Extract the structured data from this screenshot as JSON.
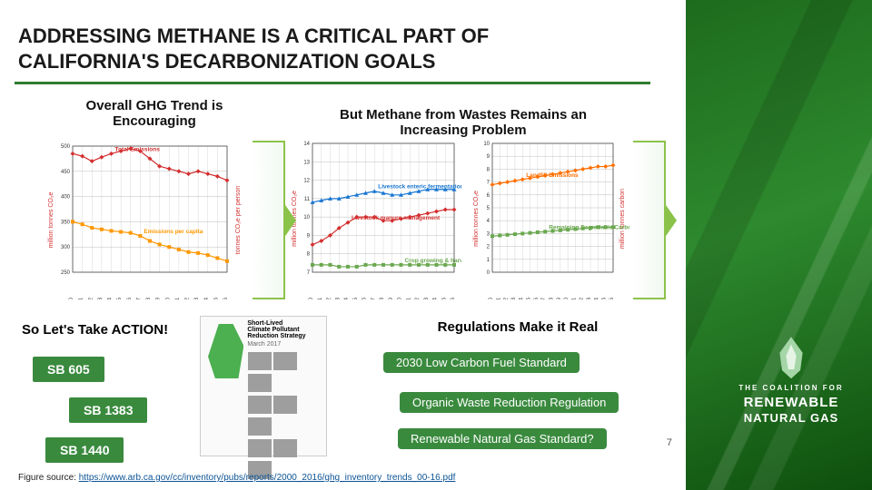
{
  "title_line1": "ADDRESSING METHANE IS A CRITICAL PART OF",
  "title_line2": "CALIFORNIA'S DECARBONIZATION GOALS",
  "title_underline_color": "#2e7d32",
  "subheaders": {
    "left": "Overall GHG Trend is Encouraging",
    "right": "But Methane from Wastes Remains an Increasing Problem"
  },
  "chart_left": {
    "type": "line",
    "series": [
      {
        "name": "Total Emissions",
        "color": "#d32f2f",
        "marker": "diamond",
        "values": [
          485,
          480,
          470,
          478,
          485,
          490,
          495,
          490,
          475,
          460,
          455,
          450,
          445,
          450,
          445,
          440,
          432
        ]
      },
      {
        "name": "Emissions per capita",
        "color": "#ff9800",
        "marker": "square",
        "values": [
          350,
          345,
          338,
          335,
          332,
          330,
          328,
          322,
          312,
          305,
          300,
          295,
          290,
          288,
          284,
          278,
          272
        ]
      }
    ],
    "x_labels": [
      "2000",
      "2001",
      "2002",
      "2003",
      "2004",
      "2005",
      "2006",
      "2007",
      "2008",
      "2009",
      "2010",
      "2011",
      "2012",
      "2013",
      "2014",
      "2015",
      "2016"
    ],
    "ylim": [
      250,
      500
    ],
    "ytick_step": 50,
    "ylabel_left": "million tonnes CO₂e",
    "ylabel_right": "tonnes CO₂e per person",
    "grid_color": "#bdbdbd",
    "background": "#ffffff"
  },
  "chart_mid": {
    "type": "line",
    "series": [
      {
        "name": "Livestock manure management",
        "color": "#d32f2f",
        "marker": "diamond",
        "values": [
          8.5,
          8.7,
          9.0,
          9.4,
          9.7,
          10.0,
          10.0,
          10.0,
          9.8,
          9.8,
          9.9,
          10.0,
          10.1,
          10.2,
          10.3,
          10.4,
          10.4
        ]
      },
      {
        "name": "Livestock enteric fermentation",
        "color": "#1976d2",
        "marker": "triangle",
        "values": [
          10.8,
          10.9,
          11.0,
          11.0,
          11.1,
          11.2,
          11.3,
          11.4,
          11.3,
          11.2,
          11.2,
          11.3,
          11.4,
          11.5,
          11.5,
          11.5,
          11.5
        ]
      },
      {
        "name": "Crop growing & harvesting",
        "color": "#6aa84f",
        "marker": "square",
        "values": [
          7.4,
          7.4,
          7.4,
          7.3,
          7.3,
          7.3,
          7.4,
          7.4,
          7.4,
          7.4,
          7.4,
          7.4,
          7.4,
          7.4,
          7.4,
          7.4,
          7.4
        ]
      }
    ],
    "x_labels": [
      "2000",
      "2001",
      "2002",
      "2003",
      "2004",
      "2005",
      "2006",
      "2007",
      "2008",
      "2009",
      "2010",
      "2011",
      "2012",
      "2013",
      "2014",
      "2015",
      "2016"
    ],
    "ylim": [
      7,
      14
    ],
    "ytick_step": 1,
    "ylabel_left": "million tonnes CO₂e",
    "grid_color": "#bdbdbd"
  },
  "chart_right": {
    "type": "line",
    "series": [
      {
        "name": "Landfill Emissions",
        "color": "#ff6f00",
        "marker": "diamond",
        "values": [
          6.8,
          6.9,
          7.0,
          7.1,
          7.2,
          7.3,
          7.4,
          7.5,
          7.6,
          7.7,
          7.8,
          7.9,
          8.0,
          8.1,
          8.2,
          8.2,
          8.3
        ]
      },
      {
        "name": "Remaining Degradable Carbon",
        "color": "#6aa84f",
        "marker": "square",
        "values": [
          2.8,
          2.85,
          2.9,
          2.95,
          3.0,
          3.05,
          3.1,
          3.15,
          3.2,
          3.25,
          3.3,
          3.35,
          3.4,
          3.45,
          3.5,
          3.5,
          3.5
        ]
      }
    ],
    "x_labels": [
      "2000",
      "2001",
      "2002",
      "2003",
      "2004",
      "2005",
      "2006",
      "2007",
      "2008",
      "2009",
      "2010",
      "2011",
      "2012",
      "2013",
      "2014",
      "2015",
      "2016"
    ],
    "ylim": [
      0,
      10
    ],
    "ytick_step": 1,
    "ylabel_left": "million tonnes CO₂e",
    "ylabel_right": "million tonnes carbon",
    "grid_color": "#bdbdbd"
  },
  "arrows": {
    "border_color": "#8bc34a"
  },
  "action_header": "So Let's Take ACTION!",
  "sb_pills": {
    "sb605": "SB 605",
    "sb1383": "SB 1383",
    "sb1440": "SB 1440"
  },
  "doc_thumb": {
    "lines": [
      "Short-Lived",
      "Climate Pollutant",
      "Reduction Strategy",
      "March 2017"
    ]
  },
  "regs_header": "Regulations Make it Real",
  "reg_pills": {
    "r1": "2030 Low Carbon Fuel Standard",
    "r2": "Organic Waste Reduction Regulation",
    "r3": "Renewable Natural Gas Standard?"
  },
  "footer": {
    "prefix": "Figure source:  ",
    "url": "https://www.arb.ca.gov/cc/inventory/pubs/reports/2000_2016/ghg_inventory_trends_00-16.pdf"
  },
  "page_num": "7",
  "brand": {
    "top_line": "THE COALITION FOR",
    "mid_line": "RENEWABLE",
    "bot_line": "NATURAL GAS"
  },
  "pill_bg": "#3a8a3e",
  "pill_fg": "#ffffff"
}
